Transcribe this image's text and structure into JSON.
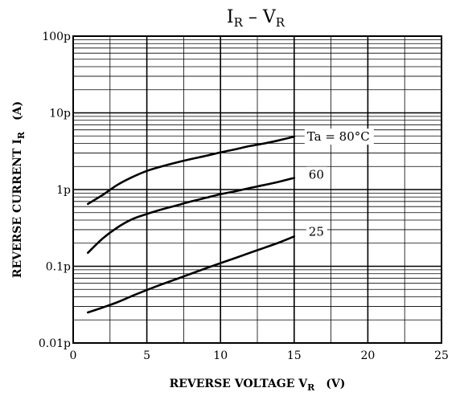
{
  "chart_data": {
    "type": "line",
    "title": "I_R – V_R",
    "title_main": "I",
    "title_sub": "R",
    "title_sep": " – ",
    "title_main2": "V",
    "title_sub2": "R",
    "xlabel_main": "REVERSE VOLTAGE  V",
    "xlabel_sub": "R",
    "xlabel_unit": "(V)",
    "ylabel_main": "REVERSE CURRENT  I",
    "ylabel_sub": "R",
    "ylabel_unit": "(A)",
    "x_scale": "linear",
    "y_scale": "log",
    "xlim": [
      0,
      25
    ],
    "ylim": [
      0.01,
      100
    ],
    "x_ticks": [
      0,
      5,
      10,
      15,
      20,
      25
    ],
    "x_tick_labels": [
      "0",
      "5",
      "10",
      "15",
      "20",
      "25"
    ],
    "y_ticks": [
      0.01,
      0.1,
      1,
      10,
      100
    ],
    "y_tick_labels": [
      "0.01p",
      "0.1p",
      "1p",
      "10p",
      "100p"
    ],
    "y_unit_note": "pA",
    "grid": true,
    "series": [
      {
        "name": "Ta = 80°C",
        "x": [
          1,
          2,
          3,
          4,
          5,
          6,
          7,
          8,
          9,
          10,
          11,
          12,
          13,
          14,
          15
        ],
        "y": [
          0.65,
          0.85,
          1.15,
          1.45,
          1.75,
          2.0,
          2.25,
          2.5,
          2.75,
          3.05,
          3.35,
          3.7,
          4.0,
          4.4,
          4.9
        ]
      },
      {
        "name": "60",
        "x": [
          1,
          2,
          3,
          4,
          5,
          6,
          7,
          8,
          9,
          10,
          11,
          12,
          13,
          14,
          15
        ],
        "y": [
          0.15,
          0.23,
          0.32,
          0.41,
          0.48,
          0.55,
          0.62,
          0.7,
          0.78,
          0.87,
          0.95,
          1.05,
          1.15,
          1.27,
          1.42
        ]
      },
      {
        "name": "25",
        "x": [
          1,
          2,
          3,
          4,
          5,
          6,
          7,
          8,
          9,
          10,
          11,
          12,
          13,
          14,
          15
        ],
        "y": [
          0.025,
          0.029,
          0.034,
          0.041,
          0.049,
          0.058,
          0.068,
          0.08,
          0.094,
          0.11,
          0.128,
          0.15,
          0.175,
          0.205,
          0.245
        ]
      }
    ]
  }
}
